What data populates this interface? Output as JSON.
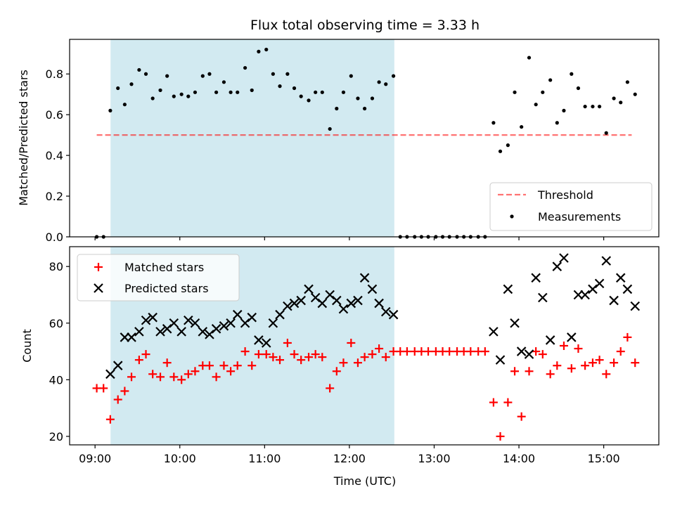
{
  "title": "Flux total observing time = 3.33 h",
  "colors": {
    "shade": "#add8e6",
    "threshold": "#ff0000",
    "measurements": "#000000",
    "matched": "#ff0000",
    "predicted": "#000000"
  },
  "chart_data": [
    {
      "type": "scatter",
      "ylabel": "Matched/Predicted stars",
      "xlabel": "",
      "xlim_hours": [
        8.7,
        15.65
      ],
      "ylim": [
        0,
        0.97
      ],
      "yticks": [
        0.0,
        0.2,
        0.4,
        0.6,
        0.8
      ],
      "ytick_labels": [
        "0.0",
        "0.2",
        "0.4",
        "0.6",
        "0.8"
      ],
      "shaded_interval_hours": [
        9.183,
        12.53
      ],
      "legend": {
        "position": "lower-right",
        "threshold_label": "Threshold",
        "measurements_label": "Measurements"
      },
      "threshold": {
        "name": "Threshold",
        "y": 0.5,
        "x_range_hours": [
          9.02,
          15.33
        ],
        "style": "dashed"
      },
      "series": [
        {
          "name": "Measurements",
          "marker": "dot",
          "points": [
            [
              9.02,
              0.0
            ],
            [
              9.1,
              0.0
            ],
            [
              9.18,
              0.62
            ],
            [
              9.27,
              0.73
            ],
            [
              9.35,
              0.65
            ],
            [
              9.43,
              0.75
            ],
            [
              9.52,
              0.82
            ],
            [
              9.6,
              0.8
            ],
            [
              9.68,
              0.68
            ],
            [
              9.77,
              0.72
            ],
            [
              9.85,
              0.79
            ],
            [
              9.93,
              0.69
            ],
            [
              10.02,
              0.7
            ],
            [
              10.1,
              0.69
            ],
            [
              10.18,
              0.71
            ],
            [
              10.27,
              0.79
            ],
            [
              10.35,
              0.8
            ],
            [
              10.43,
              0.71
            ],
            [
              10.52,
              0.76
            ],
            [
              10.6,
              0.71
            ],
            [
              10.68,
              0.71
            ],
            [
              10.77,
              0.83
            ],
            [
              10.85,
              0.72
            ],
            [
              10.93,
              0.91
            ],
            [
              11.02,
              0.92
            ],
            [
              11.1,
              0.8
            ],
            [
              11.18,
              0.74
            ],
            [
              11.27,
              0.8
            ],
            [
              11.35,
              0.73
            ],
            [
              11.43,
              0.69
            ],
            [
              11.52,
              0.67
            ],
            [
              11.6,
              0.71
            ],
            [
              11.68,
              0.71
            ],
            [
              11.77,
              0.53
            ],
            [
              11.85,
              0.63
            ],
            [
              11.93,
              0.71
            ],
            [
              12.02,
              0.79
            ],
            [
              12.1,
              0.68
            ],
            [
              12.18,
              0.63
            ],
            [
              12.27,
              0.68
            ],
            [
              12.35,
              0.76
            ],
            [
              12.43,
              0.75
            ],
            [
              12.52,
              0.79
            ],
            [
              12.6,
              0.0
            ],
            [
              12.68,
              0.0
            ],
            [
              12.77,
              0.0
            ],
            [
              12.85,
              0.0
            ],
            [
              12.93,
              0.0
            ],
            [
              13.02,
              0.0
            ],
            [
              13.1,
              0.0
            ],
            [
              13.18,
              0.0
            ],
            [
              13.27,
              0.0
            ],
            [
              13.35,
              0.0
            ],
            [
              13.43,
              0.0
            ],
            [
              13.52,
              0.0
            ],
            [
              13.6,
              0.0
            ],
            [
              13.7,
              0.56
            ],
            [
              13.78,
              0.42
            ],
            [
              13.87,
              0.45
            ],
            [
              13.95,
              0.71
            ],
            [
              14.03,
              0.54
            ],
            [
              14.12,
              0.88
            ],
            [
              14.2,
              0.65
            ],
            [
              14.28,
              0.71
            ],
            [
              14.37,
              0.77
            ],
            [
              14.45,
              0.56
            ],
            [
              14.53,
              0.62
            ],
            [
              14.62,
              0.8
            ],
            [
              14.7,
              0.73
            ],
            [
              14.78,
              0.64
            ],
            [
              14.87,
              0.64
            ],
            [
              14.95,
              0.64
            ],
            [
              15.03,
              0.51
            ],
            [
              15.12,
              0.68
            ],
            [
              15.2,
              0.66
            ],
            [
              15.28,
              0.76
            ],
            [
              15.37,
              0.7
            ]
          ]
        }
      ]
    },
    {
      "type": "scatter",
      "ylabel": "Count",
      "xlabel": "Time (UTC)",
      "xlim_hours": [
        8.7,
        15.65
      ],
      "ylim": [
        17,
        87
      ],
      "yticks": [
        20,
        40,
        60,
        80
      ],
      "ytick_labels": [
        "20",
        "40",
        "60",
        "80"
      ],
      "xticks_hours": [
        9,
        10,
        11,
        12,
        13,
        14,
        15
      ],
      "xtick_labels": [
        "09:00",
        "10:00",
        "11:00",
        "12:00",
        "13:00",
        "14:00",
        "15:00"
      ],
      "shaded_interval_hours": [
        9.183,
        12.53
      ],
      "legend": {
        "position": "upper-left",
        "matched_label": "Matched stars",
        "predicted_label": "Predicted stars"
      },
      "series": [
        {
          "name": "Matched stars",
          "marker": "plus",
          "points": [
            [
              9.02,
              37
            ],
            [
              9.1,
              37
            ],
            [
              9.18,
              26
            ],
            [
              9.27,
              33
            ],
            [
              9.35,
              36
            ],
            [
              9.43,
              41
            ],
            [
              9.52,
              47
            ],
            [
              9.6,
              49
            ],
            [
              9.68,
              42
            ],
            [
              9.77,
              41
            ],
            [
              9.85,
              46
            ],
            [
              9.93,
              41
            ],
            [
              10.02,
              40
            ],
            [
              10.1,
              42
            ],
            [
              10.18,
              43
            ],
            [
              10.27,
              45
            ],
            [
              10.35,
              45
            ],
            [
              10.43,
              41
            ],
            [
              10.52,
              45
            ],
            [
              10.6,
              43
            ],
            [
              10.68,
              45
            ],
            [
              10.77,
              50
            ],
            [
              10.85,
              45
            ],
            [
              10.93,
              49
            ],
            [
              11.02,
              49
            ],
            [
              11.1,
              48
            ],
            [
              11.18,
              47
            ],
            [
              11.27,
              53
            ],
            [
              11.35,
              49
            ],
            [
              11.43,
              47
            ],
            [
              11.52,
              48
            ],
            [
              11.6,
              49
            ],
            [
              11.68,
              48
            ],
            [
              11.77,
              37
            ],
            [
              11.85,
              43
            ],
            [
              11.93,
              46
            ],
            [
              12.02,
              53
            ],
            [
              12.1,
              46
            ],
            [
              12.18,
              48
            ],
            [
              12.27,
              49
            ],
            [
              12.35,
              51
            ],
            [
              12.43,
              48
            ],
            [
              12.52,
              50
            ],
            [
              12.6,
              50
            ],
            [
              12.68,
              50
            ],
            [
              12.77,
              50
            ],
            [
              12.85,
              50
            ],
            [
              12.93,
              50
            ],
            [
              13.02,
              50
            ],
            [
              13.1,
              50
            ],
            [
              13.18,
              50
            ],
            [
              13.27,
              50
            ],
            [
              13.35,
              50
            ],
            [
              13.43,
              50
            ],
            [
              13.52,
              50
            ],
            [
              13.6,
              50
            ],
            [
              13.7,
              32
            ],
            [
              13.78,
              20
            ],
            [
              13.87,
              32
            ],
            [
              13.95,
              43
            ],
            [
              14.03,
              27
            ],
            [
              14.12,
              43
            ],
            [
              14.2,
              50
            ],
            [
              14.28,
              49
            ],
            [
              14.37,
              42
            ],
            [
              14.45,
              45
            ],
            [
              14.53,
              52
            ],
            [
              14.62,
              44
            ],
            [
              14.7,
              51
            ],
            [
              14.78,
              45
            ],
            [
              14.87,
              46
            ],
            [
              14.95,
              47
            ],
            [
              15.03,
              42
            ],
            [
              15.12,
              46
            ],
            [
              15.2,
              50
            ],
            [
              15.28,
              55
            ],
            [
              15.37,
              46
            ]
          ]
        },
        {
          "name": "Predicted stars",
          "marker": "x",
          "points": [
            [
              9.18,
              42
            ],
            [
              9.27,
              45
            ],
            [
              9.35,
              55
            ],
            [
              9.43,
              55
            ],
            [
              9.52,
              57
            ],
            [
              9.6,
              61
            ],
            [
              9.68,
              62
            ],
            [
              9.77,
              57
            ],
            [
              9.85,
              58
            ],
            [
              9.93,
              60
            ],
            [
              10.02,
              57
            ],
            [
              10.1,
              61
            ],
            [
              10.18,
              60
            ],
            [
              10.27,
              57
            ],
            [
              10.35,
              56
            ],
            [
              10.43,
              58
            ],
            [
              10.52,
              59
            ],
            [
              10.6,
              60
            ],
            [
              10.68,
              63
            ],
            [
              10.77,
              60
            ],
            [
              10.85,
              62
            ],
            [
              10.93,
              54
            ],
            [
              11.02,
              53
            ],
            [
              11.1,
              60
            ],
            [
              11.18,
              63
            ],
            [
              11.27,
              66
            ],
            [
              11.35,
              67
            ],
            [
              11.43,
              68
            ],
            [
              11.52,
              72
            ],
            [
              11.6,
              69
            ],
            [
              11.68,
              67
            ],
            [
              11.77,
              70
            ],
            [
              11.85,
              68
            ],
            [
              11.93,
              65
            ],
            [
              12.02,
              67
            ],
            [
              12.1,
              68
            ],
            [
              12.18,
              76
            ],
            [
              12.27,
              72
            ],
            [
              12.35,
              67
            ],
            [
              12.43,
              64
            ],
            [
              12.52,
              63
            ],
            [
              13.7,
              57
            ],
            [
              13.78,
              47
            ],
            [
              13.87,
              72
            ],
            [
              13.95,
              60
            ],
            [
              14.03,
              50
            ],
            [
              14.12,
              49
            ],
            [
              14.2,
              76
            ],
            [
              14.28,
              69
            ],
            [
              14.37,
              54
            ],
            [
              14.45,
              80
            ],
            [
              14.53,
              83
            ],
            [
              14.62,
              55
            ],
            [
              14.7,
              70
            ],
            [
              14.78,
              70
            ],
            [
              14.87,
              72
            ],
            [
              14.95,
              74
            ],
            [
              15.03,
              82
            ],
            [
              15.12,
              68
            ],
            [
              15.2,
              76
            ],
            [
              15.28,
              72
            ],
            [
              15.37,
              66
            ]
          ]
        }
      ]
    }
  ]
}
